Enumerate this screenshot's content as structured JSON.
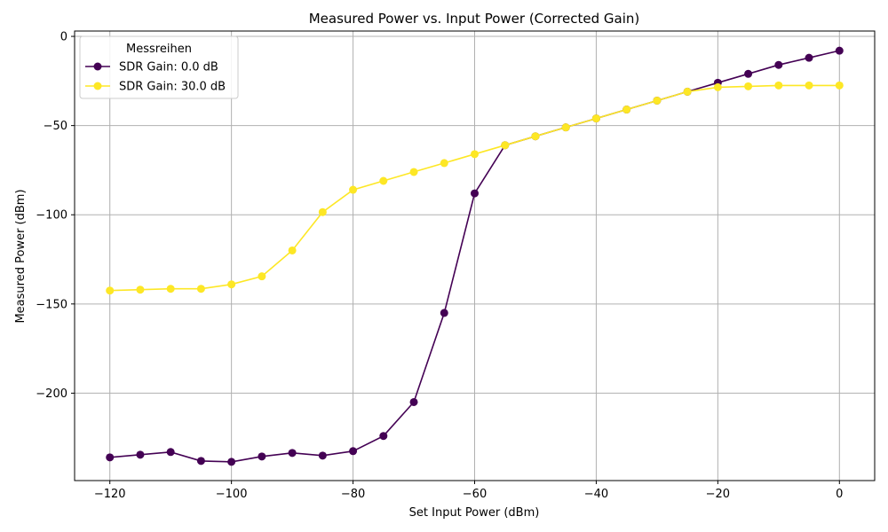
{
  "chart_data": {
    "type": "line",
    "title": "Measured Power vs. Input Power (Corrected Gain)",
    "xlabel": "Set Input Power (dBm)",
    "ylabel": "Measured Power (dBm)",
    "xlim": [
      -125.8,
      5.8
    ],
    "ylim": [
      -249,
      3
    ],
    "xticks": [
      -120,
      -100,
      -80,
      -60,
      -40,
      -20,
      0
    ],
    "xtick_labels": [
      "−120",
      "−100",
      "−80",
      "−60",
      "−40",
      "−20",
      "0"
    ],
    "yticks": [
      0,
      -50,
      -100,
      -150,
      -200
    ],
    "ytick_labels": [
      "0",
      "−50",
      "−100",
      "−150",
      "−200"
    ],
    "grid": true,
    "legend": {
      "title": "Messreihen",
      "placement": "top-left"
    },
    "x": [
      -120,
      -115,
      -110,
      -105,
      -100,
      -95,
      -90,
      -85,
      -80,
      -75,
      -70,
      -65,
      -60,
      -55,
      -50,
      -45,
      -40,
      -35,
      -30,
      -25,
      -20,
      -15,
      -10,
      -5,
      0
    ],
    "series": [
      {
        "name": "SDR Gain: 0.0 dB",
        "color": "#440154",
        "values": [
          -236,
          -234.5,
          -233,
          -238,
          -238.5,
          -235.5,
          -233.5,
          -235,
          -232.5,
          -224,
          -205,
          -155,
          -88,
          -61,
          -56,
          -51,
          -46,
          -41,
          -36,
          -31,
          -26,
          -21,
          -16,
          -12,
          -8
        ]
      },
      {
        "name": "SDR Gain: 30.0 dB",
        "color": "#fde725",
        "values": [
          -142.5,
          -142,
          -141.5,
          -141.5,
          -139,
          -134.5,
          -120,
          -98.5,
          -86,
          -81,
          -76,
          -71,
          -66,
          -61,
          -56,
          -51,
          -46,
          -41,
          -36,
          -31,
          -28.5,
          -28,
          -27.5,
          -27.5,
          -27.5
        ]
      }
    ]
  }
}
